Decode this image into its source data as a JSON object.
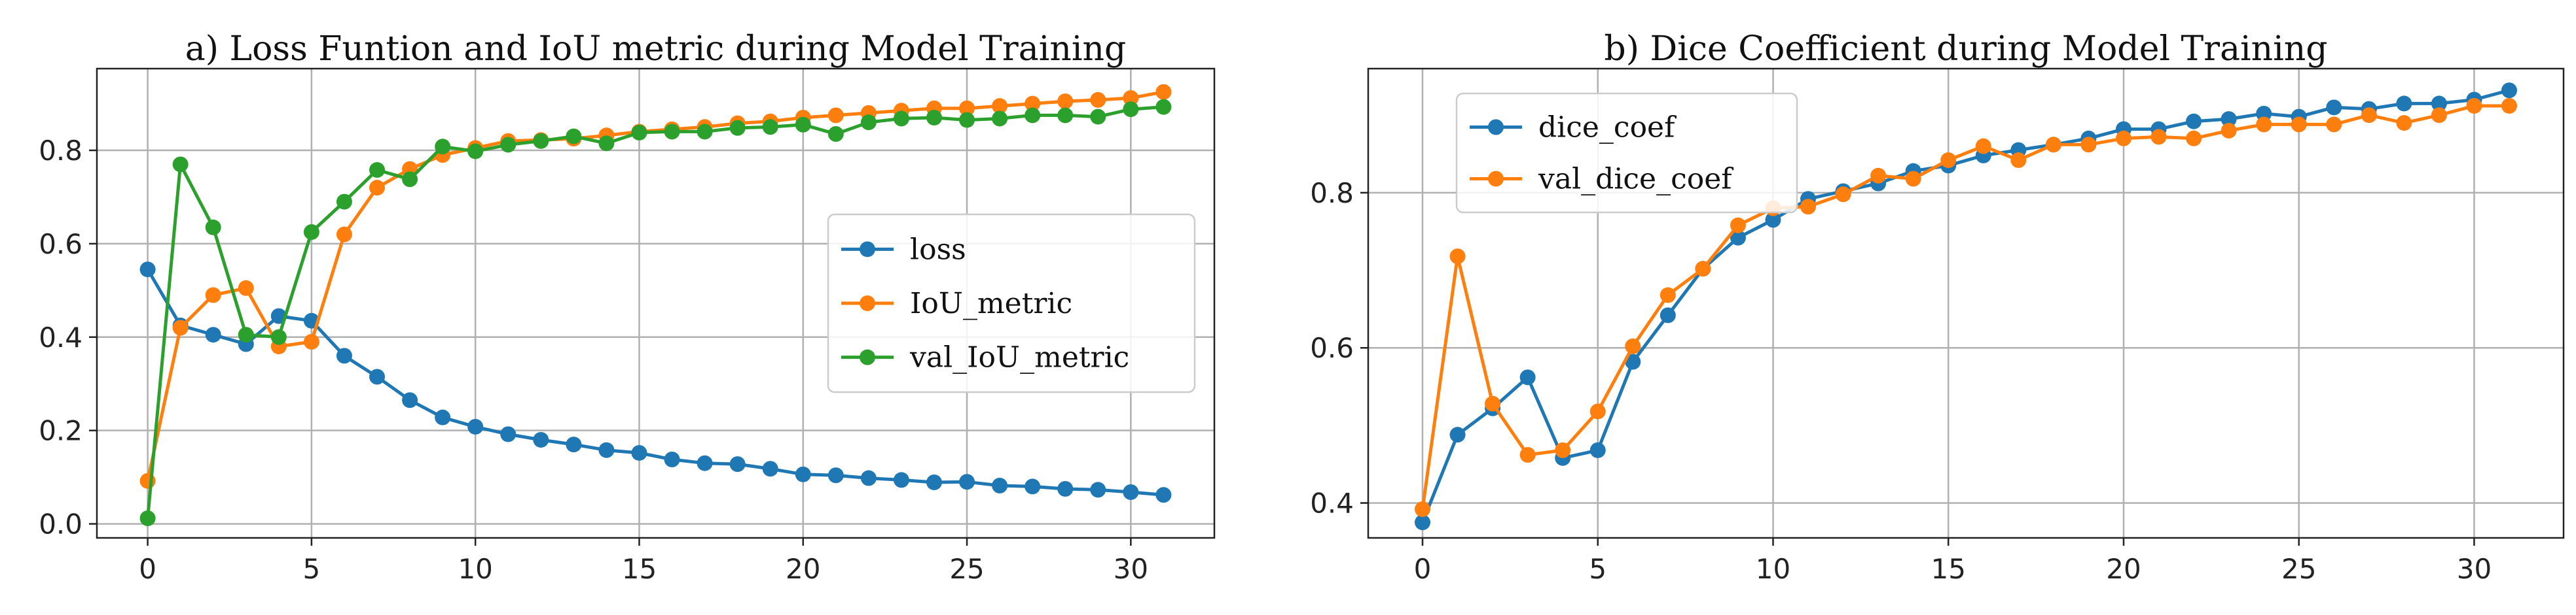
{
  "chart_data": [
    {
      "type": "line",
      "title": "a) Loss Funtion and IoU metric during Model Training",
      "xlabel": "",
      "ylabel": "",
      "xlim": [
        -1.55,
        32.55
      ],
      "ylim": [
        -0.03,
        0.975
      ],
      "xticks": [
        0,
        5,
        10,
        15,
        20,
        25,
        30
      ],
      "yticks": [
        0.0,
        0.2,
        0.4,
        0.6,
        0.8
      ],
      "ytick_labels": [
        "0.0",
        "0.2",
        "0.4",
        "0.6",
        "0.8"
      ],
      "grid": true,
      "legend_position": "center-right",
      "x": [
        0,
        1,
        2,
        3,
        4,
        5,
        6,
        7,
        8,
        9,
        10,
        11,
        12,
        13,
        14,
        15,
        16,
        17,
        18,
        19,
        20,
        21,
        22,
        23,
        24,
        25,
        26,
        27,
        28,
        29,
        30,
        31
      ],
      "series": [
        {
          "name": "loss",
          "color": "#1f77b4",
          "values": [
            0.545,
            0.425,
            0.405,
            0.385,
            0.445,
            0.435,
            0.36,
            0.315,
            0.265,
            0.228,
            0.208,
            0.192,
            0.18,
            0.17,
            0.158,
            0.152,
            0.138,
            0.13,
            0.128,
            0.118,
            0.106,
            0.104,
            0.098,
            0.094,
            0.089,
            0.09,
            0.082,
            0.08,
            0.075,
            0.073,
            0.068,
            0.062
          ]
        },
        {
          "name": "IoU_metric",
          "color": "#ff7f0e",
          "values": [
            0.092,
            0.42,
            0.49,
            0.505,
            0.38,
            0.39,
            0.62,
            0.72,
            0.76,
            0.79,
            0.805,
            0.82,
            0.822,
            0.825,
            0.832,
            0.84,
            0.845,
            0.85,
            0.858,
            0.862,
            0.87,
            0.875,
            0.88,
            0.885,
            0.89,
            0.89,
            0.895,
            0.9,
            0.905,
            0.908,
            0.912,
            0.925
          ]
        },
        {
          "name": "val_IoU_metric",
          "color": "#2ca02c",
          "values": [
            0.012,
            0.77,
            0.635,
            0.405,
            0.4,
            0.625,
            0.69,
            0.758,
            0.738,
            0.808,
            0.798,
            0.812,
            0.82,
            0.83,
            0.815,
            0.838,
            0.84,
            0.84,
            0.848,
            0.85,
            0.855,
            0.835,
            0.86,
            0.868,
            0.87,
            0.865,
            0.868,
            0.875,
            0.875,
            0.872,
            0.888,
            0.893
          ]
        }
      ]
    },
    {
      "type": "line",
      "title": "b) Dice Coefficient during Model Training",
      "xlabel": "",
      "ylabel": "",
      "xlim": [
        -1.55,
        32.55
      ],
      "ylim": [
        0.355,
        0.96
      ],
      "xticks": [
        0,
        5,
        10,
        15,
        20,
        25,
        30
      ],
      "yticks": [
        0.4,
        0.6,
        0.8
      ],
      "ytick_labels": [
        "0.4",
        "0.6",
        "0.8"
      ],
      "grid": true,
      "legend_position": "top-left",
      "x": [
        0,
        1,
        2,
        3,
        4,
        5,
        6,
        7,
        8,
        9,
        10,
        11,
        12,
        13,
        14,
        15,
        16,
        17,
        18,
        19,
        20,
        21,
        22,
        23,
        24,
        25,
        26,
        27,
        28,
        29,
        30,
        31
      ],
      "series": [
        {
          "name": "dice_coef",
          "color": "#1f77b4",
          "values": [
            0.375,
            0.488,
            0.522,
            0.562,
            0.458,
            0.468,
            0.582,
            0.642,
            0.702,
            0.742,
            0.765,
            0.792,
            0.802,
            0.812,
            0.828,
            0.835,
            0.848,
            0.855,
            0.862,
            0.87,
            0.882,
            0.882,
            0.892,
            0.895,
            0.902,
            0.898,
            0.91,
            0.908,
            0.915,
            0.915,
            0.92,
            0.932
          ]
        },
        {
          "name": "val_dice_coef",
          "color": "#ff7f0e",
          "values": [
            0.392,
            0.718,
            0.528,
            0.462,
            0.468,
            0.518,
            0.602,
            0.668,
            0.702,
            0.758,
            0.78,
            0.782,
            0.798,
            0.822,
            0.818,
            0.842,
            0.86,
            0.842,
            0.862,
            0.862,
            0.87,
            0.872,
            0.87,
            0.88,
            0.888,
            0.888,
            0.888,
            0.9,
            0.89,
            0.9,
            0.912,
            0.912
          ]
        }
      ]
    }
  ]
}
